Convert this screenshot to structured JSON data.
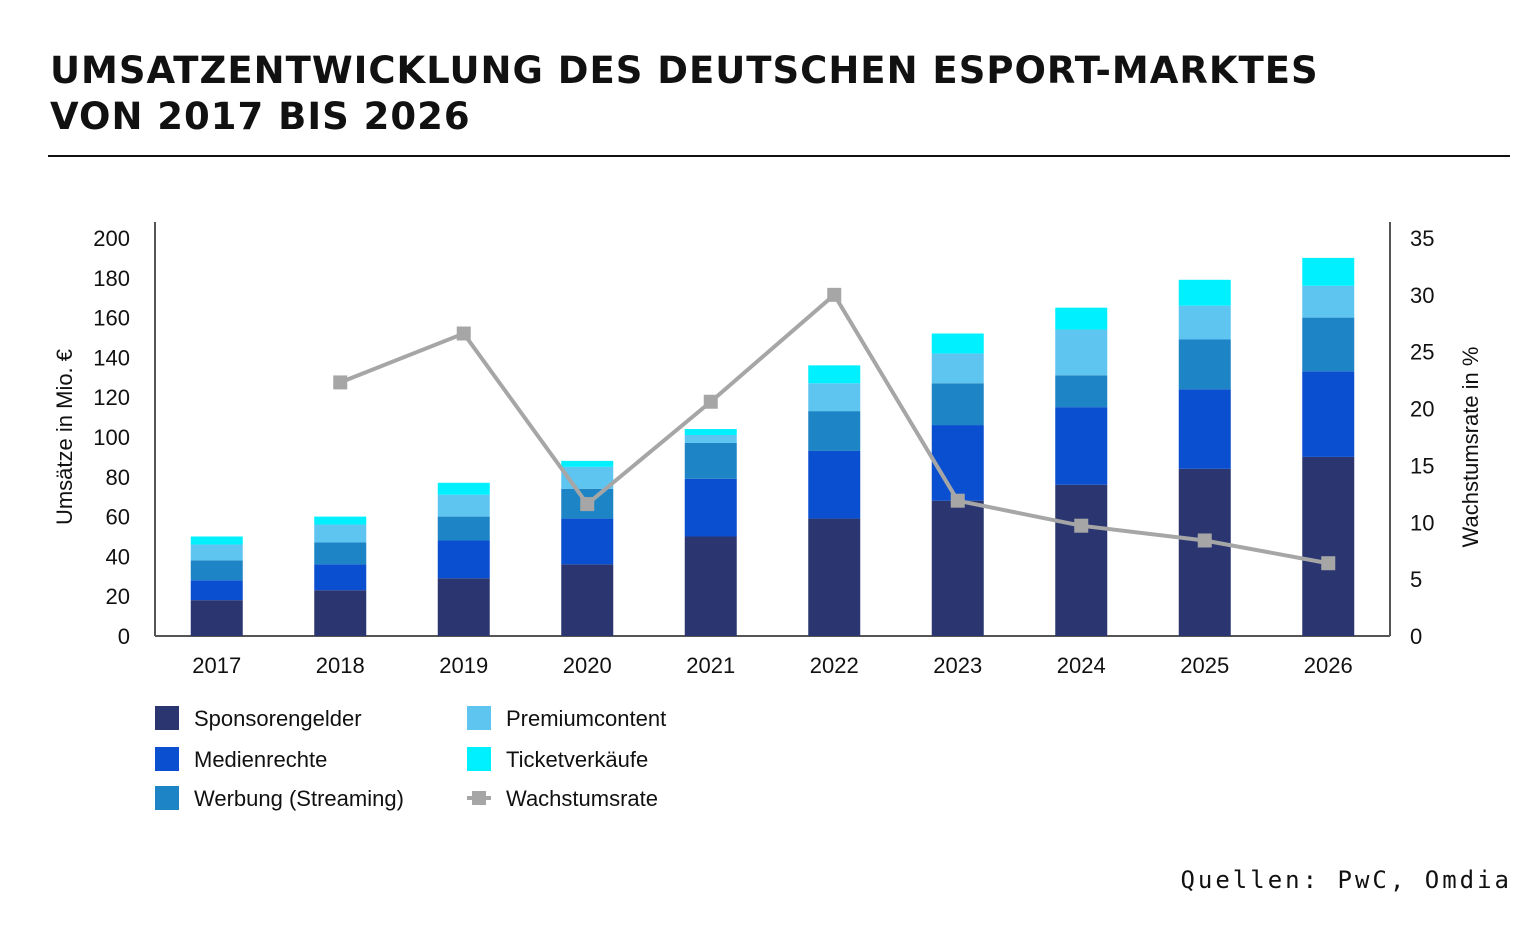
{
  "title_line1": "UMSATZENTWICKLUNG DES DEUTSCHEN ESPORT-MARKTES",
  "title_line2": "VON 2017 BIS 2026",
  "source": "Quellen: PwC, Omdia",
  "chart_data": {
    "type": "bar",
    "stacked": true,
    "categories": [
      "2017",
      "2018",
      "2019",
      "2020",
      "2021",
      "2022",
      "2023",
      "2024",
      "2025",
      "2026"
    ],
    "ylabel": "Umsätze in Mio. €",
    "ylim": [
      0,
      200
    ],
    "yticks": [
      "0",
      "20",
      "40",
      "60",
      "80",
      "100",
      "120",
      "140",
      "160",
      "180",
      "200"
    ],
    "y2label": "Wachstumsrate in %",
    "y2lim": [
      0,
      35
    ],
    "y2ticks": [
      "0",
      "5",
      "10",
      "15",
      "20",
      "25",
      "30",
      "35"
    ],
    "grid": false,
    "legend_position": "bottom-left",
    "series": [
      {
        "name": "Sponsorengelder",
        "color": "#2b3670",
        "values": [
          18,
          23,
          29,
          36,
          50,
          59,
          68,
          76,
          84,
          90
        ]
      },
      {
        "name": "Medienrechte",
        "color": "#0a4fcf",
        "values": [
          10,
          13,
          19,
          23,
          29,
          34,
          38,
          39,
          40,
          43
        ]
      },
      {
        "name": "Werbung (Streaming)",
        "color": "#1d84c6",
        "values": [
          10,
          11,
          12,
          15,
          18,
          20,
          21,
          16,
          25,
          27
        ]
      },
      {
        "name": "Premiumcontent",
        "color": "#5ec5f0",
        "values": [
          8,
          9,
          11,
          11,
          4,
          14,
          15,
          23,
          17,
          16
        ]
      },
      {
        "name": "Ticketverkäufe",
        "color": "#00f0ff",
        "values": [
          4,
          4,
          6,
          3,
          3,
          9,
          10,
          11,
          13,
          14
        ]
      }
    ],
    "line_series": {
      "name": "Wachstumsrate",
      "color": "#a6a6a6",
      "axis": "right",
      "values": [
        null,
        22.3,
        26.6,
        11.6,
        20.6,
        30.0,
        11.9,
        9.7,
        8.4,
        6.4
      ]
    }
  }
}
